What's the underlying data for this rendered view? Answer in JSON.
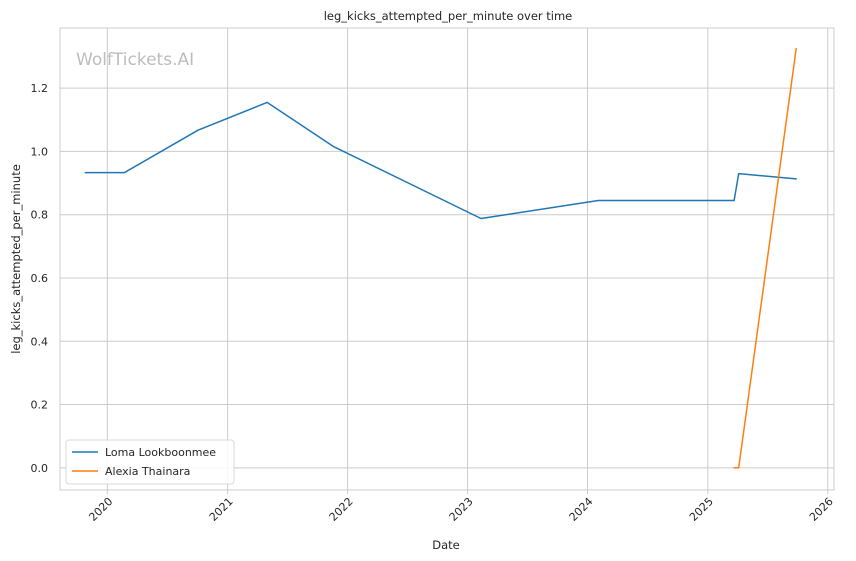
{
  "chart_data": {
    "type": "line",
    "title": "leg_kicks_attempted_per_minute over time",
    "xlabel": "Date",
    "ylabel": "leg_kicks_attempted_per_minute",
    "watermark": "WolfTickets.AI",
    "xlim": [
      "2019-08-10",
      "2026-01-20"
    ],
    "ylim": [
      -0.07,
      1.39
    ],
    "x_ticks": [
      {
        "date": "2020-01-01",
        "label": "2020"
      },
      {
        "date": "2021-01-01",
        "label": "2021"
      },
      {
        "date": "2022-01-01",
        "label": "2022"
      },
      {
        "date": "2023-01-01",
        "label": "2023"
      },
      {
        "date": "2024-01-01",
        "label": "2024"
      },
      {
        "date": "2025-01-01",
        "label": "2025"
      },
      {
        "date": "2026-01-01",
        "label": "2026"
      }
    ],
    "y_ticks": [
      {
        "value": 0.0,
        "label": "0.0"
      },
      {
        "value": 0.2,
        "label": "0.2"
      },
      {
        "value": 0.4,
        "label": "0.4"
      },
      {
        "value": 0.6,
        "label": "0.6"
      },
      {
        "value": 0.8,
        "label": "0.8"
      },
      {
        "value": 1.0,
        "label": "1.0"
      },
      {
        "value": 1.2,
        "label": "1.2"
      }
    ],
    "grid": true,
    "legend_position": "lower-left",
    "series": [
      {
        "name": "Loma Lookboonmee",
        "color": "#1f77b4",
        "points": [
          {
            "x": "2019-10-26",
            "y": 0.933
          },
          {
            "x": "2020-02-22",
            "y": 0.933
          },
          {
            "x": "2020-10-03",
            "y": 1.067
          },
          {
            "x": "2021-05-01",
            "y": 1.155
          },
          {
            "x": "2021-11-20",
            "y": 1.015
          },
          {
            "x": "2023-02-11",
            "y": 0.788
          },
          {
            "x": "2024-02-03",
            "y": 0.845
          },
          {
            "x": "2025-03-22",
            "y": 0.845
          },
          {
            "x": "2025-04-05",
            "y": 0.93
          },
          {
            "x": "2025-09-27",
            "y": 0.913
          }
        ]
      },
      {
        "name": "Alexia Thainara",
        "color": "#ff7f0e",
        "points": [
          {
            "x": "2025-03-22",
            "y": 0.0
          },
          {
            "x": "2025-04-05",
            "y": 0.0
          },
          {
            "x": "2025-09-27",
            "y": 1.325
          }
        ]
      }
    ]
  }
}
